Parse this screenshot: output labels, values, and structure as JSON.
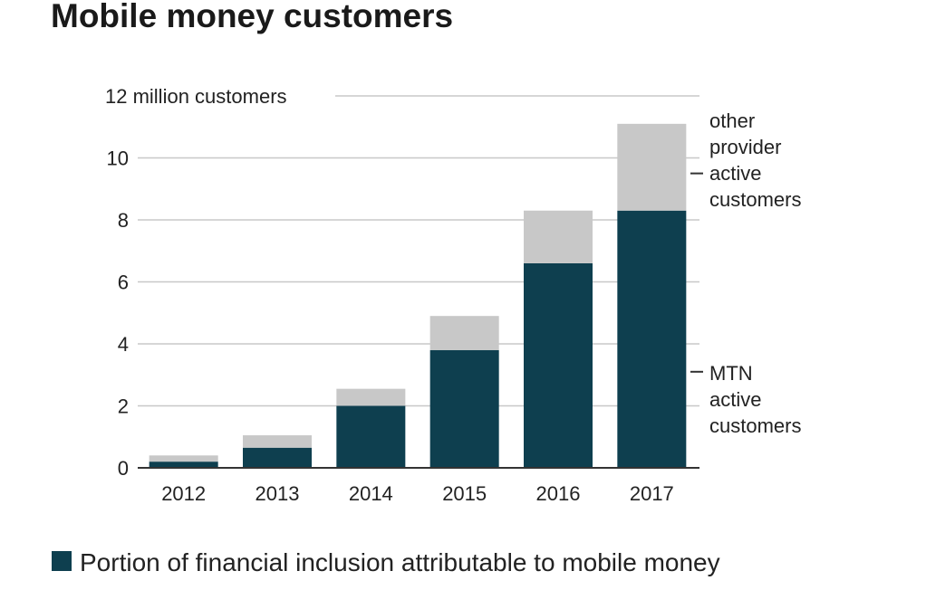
{
  "chart_data": {
    "type": "bar",
    "stacked": true,
    "title": "Mobile money customers",
    "categories": [
      "2012",
      "2013",
      "2014",
      "2015",
      "2016",
      "2017"
    ],
    "series": [
      {
        "name": "MTN active customers",
        "values": [
          0.2,
          0.65,
          2.0,
          3.8,
          6.6,
          8.3
        ],
        "color": "#0e3f4f"
      },
      {
        "name": "other provider active customers",
        "values": [
          0.2,
          0.4,
          0.55,
          1.1,
          1.7,
          2.8
        ],
        "color": "#c8c8c8"
      }
    ],
    "ylim": [
      0,
      12
    ],
    "yticks": [
      {
        "value": 0,
        "label": "0"
      },
      {
        "value": 2,
        "label": "2"
      },
      {
        "value": 4,
        "label": "4"
      },
      {
        "value": 6,
        "label": "6"
      },
      {
        "value": 8,
        "label": "8"
      },
      {
        "value": 10,
        "label": "10"
      },
      {
        "value": 12,
        "label": "12 million customers"
      }
    ],
    "grid": true,
    "series_labels": [
      {
        "lines": [
          "other",
          "provider",
          "active",
          "customers"
        ],
        "anchor_value": 9.5
      },
      {
        "lines": [
          "MTN",
          "active",
          "customers"
        ],
        "anchor_value": 3.1
      }
    ],
    "legend": {
      "placement": "bottom-left",
      "label": "Portion of financial inclusion attributable to mobile money",
      "color": "#0e3f4f"
    },
    "colors": {
      "grid": "#c8c8c8",
      "text": "#222222",
      "title": "#1a1a1a",
      "axis": "#333333"
    }
  }
}
